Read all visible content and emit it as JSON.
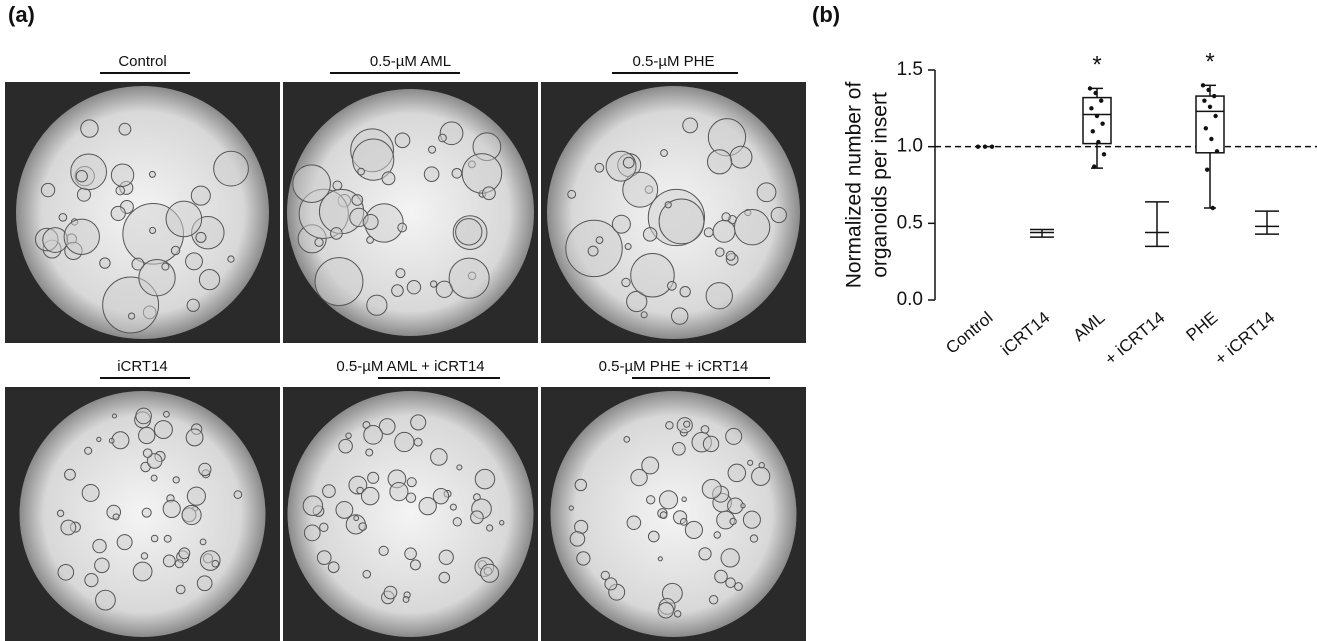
{
  "panel_a": {
    "label": "(a)",
    "images": [
      {
        "title": "Control"
      },
      {
        "title": "0.5-µM AML"
      },
      {
        "title": "0.5-µM PHE"
      },
      {
        "title": "iCRT14"
      },
      {
        "title": "0.5-µM AML + iCRT14"
      },
      {
        "title": "0.5-µM PHE + iCRT14"
      }
    ]
  },
  "chart_data": {
    "type": "box",
    "panel_label": "(b)",
    "ylabel": [
      "Normalized number of",
      "organoids per insert"
    ],
    "categories": [
      "Control",
      "iCRT14",
      "AML",
      "+ iCRT14",
      "PHE",
      "+ iCRT14"
    ],
    "groups": [
      {
        "points": [
          1,
          1,
          1
        ]
      },
      {
        "min": 0.41,
        "median": 0.44,
        "max": 0.46
      },
      {
        "min": 0.86,
        "q1": 1.02,
        "median": 1.21,
        "q3": 1.32,
        "max": 1.38,
        "points": [
          1.38,
          1.35,
          1.3,
          1.25,
          1.2,
          1.15,
          1.1,
          1.03,
          0.95,
          0.87
        ],
        "annotation": "*"
      },
      {
        "min": 0.35,
        "median": 0.44,
        "max": 0.64
      },
      {
        "min": 0.6,
        "q1": 0.96,
        "median": 1.23,
        "q3": 1.33,
        "max": 1.4,
        "points": [
          1.4,
          1.37,
          1.33,
          1.3,
          1.26,
          1.2,
          1.12,
          1.05,
          0.97,
          0.85,
          0.6
        ],
        "annotation": "*"
      },
      {
        "min": 0.43,
        "median": 0.48,
        "max": 0.58
      }
    ],
    "reference_line": 1.0,
    "ylim": [
      0,
      1.5
    ],
    "yticks": [
      {
        "value": 0,
        "label": "0.0"
      },
      {
        "value": 0.5,
        "label": "0.5"
      },
      {
        "value": 1,
        "label": "1.0"
      },
      {
        "value": 1.5,
        "label": "1.5"
      }
    ]
  }
}
